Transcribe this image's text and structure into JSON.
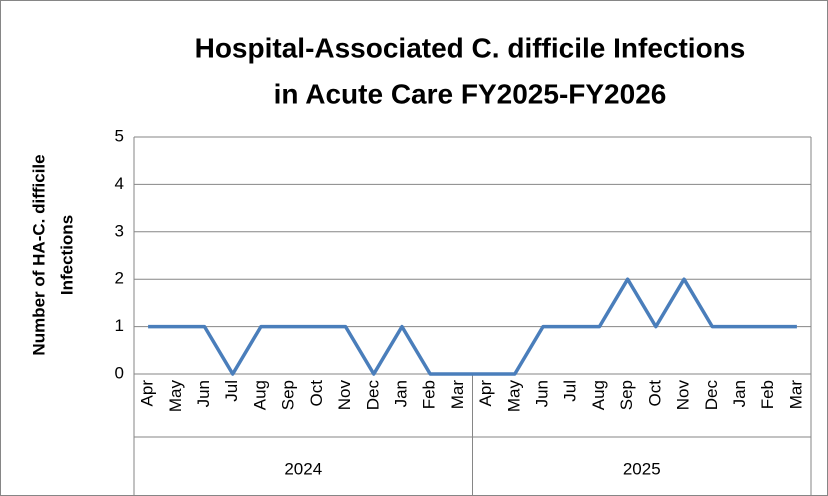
{
  "chart_data": {
    "type": "line",
    "title": [
      "Hospital-Associated C. difficile Infections",
      "in Acute Care FY2025-FY2026"
    ],
    "y_label": [
      "Number of HA-C. difficile",
      "Infections"
    ],
    "categories": [
      "Apr",
      "May",
      "Jun",
      "Jul",
      "Aug",
      "Sep",
      "Oct",
      "Nov",
      "Dec",
      "Jan",
      "Feb",
      "Mar",
      "Apr",
      "May",
      "Jun",
      "Jul",
      "Aug",
      "Sep",
      "Oct",
      "Nov",
      "Dec",
      "Jan",
      "Feb",
      "Mar"
    ],
    "category_groups": [
      "2024",
      "2025"
    ],
    "series": [
      {
        "name": "HA-C. difficile Infections",
        "color": "#4a7ebb",
        "values": [
          1,
          1,
          1,
          0,
          1,
          1,
          1,
          1,
          0,
          1,
          0,
          0,
          0,
          0,
          1,
          1,
          1,
          2,
          1,
          2,
          1,
          1,
          1,
          1
        ]
      }
    ],
    "ylim": [
      0,
      5
    ],
    "yticks": [
      0,
      1,
      2,
      3,
      4,
      5
    ],
    "grid": true,
    "legend": false
  }
}
